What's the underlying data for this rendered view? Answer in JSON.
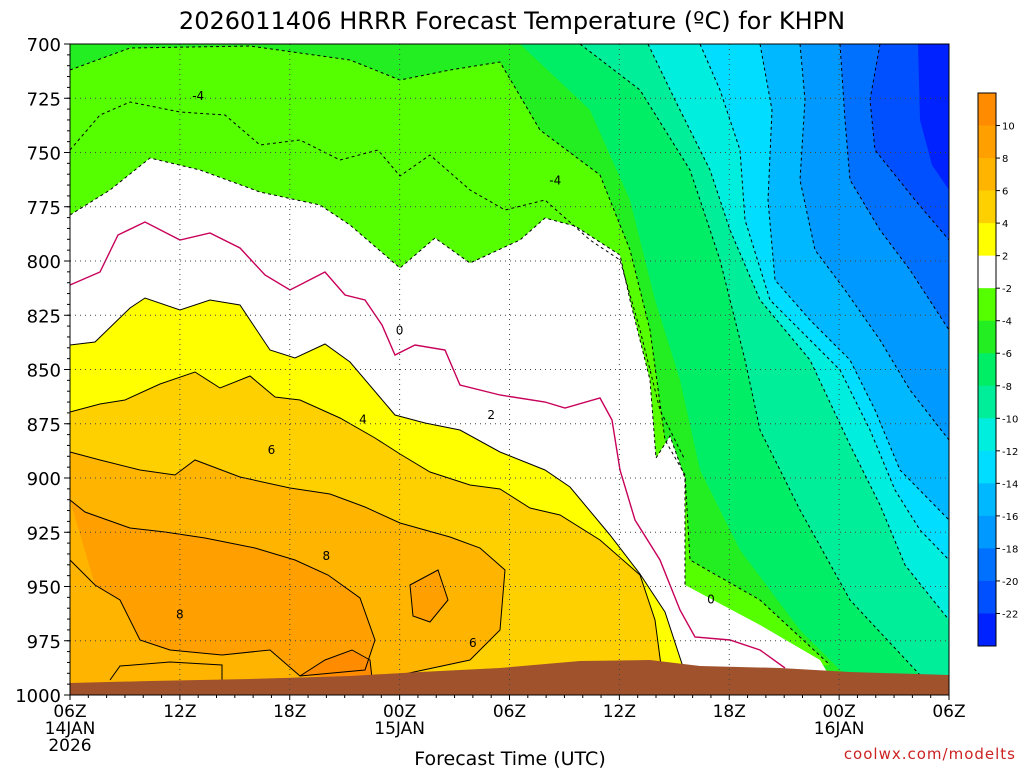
{
  "chart_data": {
    "type": "contour",
    "title": "2026011406 HRRR Forecast Temperature (ºC) for KHPN",
    "xlabel": "Forecast Time (UTC)",
    "ylabel": "",
    "credit": "coolwx.com/modelts",
    "y_axis": {
      "ticks": [
        "700",
        "725",
        "750",
        "775",
        "800",
        "825",
        "850",
        "875",
        "900",
        "925",
        "950",
        "975",
        "1000"
      ],
      "range": [
        700,
        1000
      ],
      "inverted": true
    },
    "x_axis": {
      "range_hours": [
        0,
        48
      ],
      "ticks": [
        {
          "hour": 0,
          "lines": [
            "06Z",
            "14JAN",
            "2026"
          ]
        },
        {
          "hour": 6,
          "lines": [
            "12Z"
          ]
        },
        {
          "hour": 12,
          "lines": [
            "18Z"
          ]
        },
        {
          "hour": 18,
          "lines": [
            "00Z",
            "15JAN"
          ]
        },
        {
          "hour": 24,
          "lines": [
            "06Z"
          ]
        },
        {
          "hour": 30,
          "lines": [
            "12Z"
          ]
        },
        {
          "hour": 36,
          "lines": [
            "18Z"
          ]
        },
        {
          "hour": 42,
          "lines": [
            "00Z",
            "16JAN"
          ]
        },
        {
          "hour": 48,
          "lines": [
            "06Z"
          ]
        }
      ]
    },
    "grid": true,
    "colorbar": {
      "labels": [
        "10",
        "8",
        "6",
        "4",
        "2",
        "-2",
        "-4",
        "-6",
        "-8",
        "-10",
        "-12",
        "-14",
        "-16",
        "-18",
        "-20",
        "-22"
      ],
      "bins": [
        {
          "color": "#ff8c00"
        },
        {
          "color": "#ff9f00"
        },
        {
          "color": "#ffb400"
        },
        {
          "color": "#ffd000"
        },
        {
          "color": "#ffff00"
        },
        {
          "color": "#ffffff"
        },
        {
          "color": "#55ff00"
        },
        {
          "color": "#22ee22"
        },
        {
          "color": "#00ee66"
        },
        {
          "color": "#00ee99"
        },
        {
          "color": "#00eedd"
        },
        {
          "color": "#00ddff"
        },
        {
          "color": "#00b8ff"
        },
        {
          "color": "#0099ff"
        },
        {
          "color": "#0070ff"
        },
        {
          "color": "#0050ff"
        },
        {
          "color": "#0022ff"
        }
      ]
    },
    "terrain_color": "#a0522d",
    "contour_labels": [
      {
        "text": "-4",
        "hour": 7.0,
        "p": 724
      },
      {
        "text": "-4",
        "hour": 26.5,
        "p": 763
      },
      {
        "text": "0",
        "hour": 18.0,
        "p": 832
      },
      {
        "text": "2",
        "hour": 23.0,
        "p": 871
      },
      {
        "text": "4",
        "hour": 16.0,
        "p": 873
      },
      {
        "text": "6",
        "hour": 11.0,
        "p": 887
      },
      {
        "text": "8",
        "hour": 14.0,
        "p": 936
      },
      {
        "text": "8",
        "hour": 6.0,
        "p": 963
      },
      {
        "text": "6",
        "hour": 22.0,
        "p": 976
      },
      {
        "text": "0",
        "hour": 35.0,
        "p": 956
      }
    ]
  }
}
